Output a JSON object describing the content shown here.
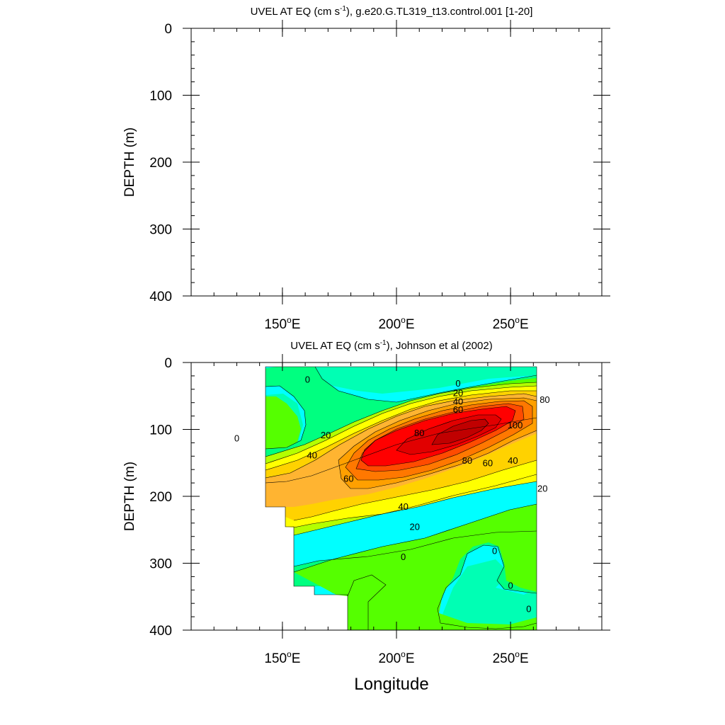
{
  "chart_data": [
    {
      "type": "contour",
      "title": "UVEL AT EQ (cm s-1), g.e20.G.TL319_t13.control.001 [1-20]",
      "title_parts": {
        "pre": "UVEL AT EQ (cm s",
        "sup": "-1",
        "post": "), g.e20.G.TL319_t13.control.001 [1-20]"
      },
      "xlabel": "",
      "ylabel": "DEPTH (m)",
      "xlim": [
        110,
        290
      ],
      "ylim": [
        0,
        400
      ],
      "y_inverted": true,
      "x_ticks": [
        {
          "value": 150,
          "label": "150",
          "deg": "o",
          "hem": "E"
        },
        {
          "value": 200,
          "label": "200",
          "deg": "o",
          "hem": "E"
        },
        {
          "value": 250,
          "label": "250",
          "deg": "o",
          "hem": "E"
        }
      ],
      "y_ticks": [
        {
          "value": 0,
          "label": "0"
        },
        {
          "value": 100,
          "label": "100"
        },
        {
          "value": 200,
          "label": "200"
        },
        {
          "value": 300,
          "label": "300"
        },
        {
          "value": 400,
          "label": "400"
        }
      ],
      "data": "empty"
    },
    {
      "type": "contour",
      "title": "UVEL AT EQ (cm s-1), Johnson et al (2002)",
      "title_parts": {
        "pre": "UVEL AT EQ (cm s",
        "sup": "-1",
        "post": "), Johnson et al (2002)"
      },
      "xlabel": "Longitude",
      "ylabel": "DEPTH (m)",
      "xlim": [
        110,
        290
      ],
      "ylim": [
        0,
        400
      ],
      "y_inverted": true,
      "x_ticks": [
        {
          "value": 150,
          "label": "150",
          "deg": "o",
          "hem": "E"
        },
        {
          "value": 200,
          "label": "200",
          "deg": "o",
          "hem": "E"
        },
        {
          "value": 250,
          "label": "250",
          "deg": "o",
          "hem": "E"
        }
      ],
      "y_ticks": [
        {
          "value": 0,
          "label": "0"
        },
        {
          "value": 100,
          "label": "100"
        },
        {
          "value": 200,
          "label": "200"
        },
        {
          "value": 300,
          "label": "300"
        },
        {
          "value": 400,
          "label": "400"
        }
      ],
      "contour_interval": 10,
      "levels": [
        -20,
        -10,
        0,
        10,
        20,
        30,
        40,
        50,
        60,
        70,
        80,
        90,
        100,
        110
      ],
      "colors": [
        "#00ffff",
        "#00ffb4",
        "#00ff80",
        "#55ff00",
        "#b4ff00",
        "#ffff00",
        "#ffd200",
        "#ffa000",
        "#ff7800",
        "#ff4b00",
        "#ff0000",
        "#e10000",
        "#c00000",
        "#a00000"
      ],
      "data_domain": {
        "x": [
          142,
          265
        ],
        "depth": [
          5,
          400
        ]
      },
      "core": {
        "lon": 220,
        "depth": 110,
        "value": 110
      },
      "contour_labels": [
        {
          "text": "0",
          "lon": 130,
          "depth": 115
        },
        {
          "text": "0",
          "lon": 161,
          "depth": 27
        },
        {
          "text": "0",
          "lon": 227,
          "depth": 33
        },
        {
          "text": "20",
          "lon": 169,
          "depth": 110
        },
        {
          "text": "20",
          "lon": 227,
          "depth": 47
        },
        {
          "text": "40",
          "lon": 163,
          "depth": 140
        },
        {
          "text": "40",
          "lon": 227,
          "depth": 60
        },
        {
          "text": "60",
          "lon": 227,
          "depth": 72
        },
        {
          "text": "80",
          "lon": 210,
          "depth": 107
        },
        {
          "text": "80",
          "lon": 265,
          "depth": 57
        },
        {
          "text": "100",
          "lon": 252,
          "depth": 95
        },
        {
          "text": "80",
          "lon": 231,
          "depth": 148
        },
        {
          "text": "60",
          "lon": 240,
          "depth": 152
        },
        {
          "text": "40",
          "lon": 251,
          "depth": 148
        },
        {
          "text": "60",
          "lon": 179,
          "depth": 175
        },
        {
          "text": "20",
          "lon": 264,
          "depth": 190
        },
        {
          "text": "40",
          "lon": 203,
          "depth": 217
        },
        {
          "text": "20",
          "lon": 208,
          "depth": 247
        },
        {
          "text": "0",
          "lon": 203,
          "depth": 292
        },
        {
          "text": "0",
          "lon": 243,
          "depth": 283
        },
        {
          "text": "0",
          "lon": 250,
          "depth": 335
        },
        {
          "text": "0",
          "lon": 258,
          "depth": 370
        }
      ]
    }
  ]
}
